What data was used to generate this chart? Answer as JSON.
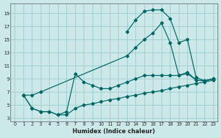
{
  "xlabel": "Humidex (Indice chaleur)",
  "bg_color": "#cce8e8",
  "grid_color": "#99cccc",
  "line_color": "#006666",
  "xlim": [
    -0.5,
    23.5
  ],
  "ylim": [
    2.5,
    20.5
  ],
  "xticks": [
    0,
    1,
    2,
    3,
    4,
    5,
    6,
    7,
    8,
    9,
    10,
    11,
    12,
    13,
    14,
    15,
    16,
    17,
    18,
    19,
    20,
    21,
    22,
    23
  ],
  "yticks": [
    3,
    5,
    7,
    9,
    11,
    13,
    15,
    17,
    19
  ],
  "curves": [
    {
      "x": [
        13,
        14,
        15,
        16,
        17,
        18,
        19,
        20,
        21,
        22,
        23
      ],
      "y": [
        16.2,
        18.0,
        19.3,
        19.5,
        19.5,
        18.2,
        14.5,
        15.0,
        9.2,
        8.7,
        9.0
      ]
    },
    {
      "x": [
        1,
        2,
        3,
        13,
        14,
        15,
        16,
        17,
        18,
        19,
        20,
        21,
        22,
        23
      ],
      "y": [
        6.5,
        6.5,
        7.0,
        12.5,
        13.8,
        15.0,
        16.0,
        17.5,
        14.5,
        9.5,
        10.0,
        8.8,
        8.7,
        9.0
      ]
    },
    {
      "x": [
        1,
        2,
        3,
        4,
        5,
        6,
        7,
        8,
        9,
        10,
        11,
        12,
        13,
        14,
        15,
        16,
        17,
        18,
        19,
        20,
        21,
        22,
        23
      ],
      "y": [
        6.5,
        4.5,
        4.0,
        4.0,
        3.5,
        4.0,
        9.8,
        8.5,
        8.0,
        7.5,
        7.5,
        8.0,
        8.5,
        9.0,
        9.5,
        9.5,
        9.5,
        9.5,
        9.5,
        9.8,
        8.8,
        8.7,
        9.0
      ]
    },
    {
      "x": [
        1,
        2,
        3,
        4,
        5,
        6,
        7,
        8,
        9,
        10,
        11,
        12,
        13,
        14,
        15,
        16,
        17,
        18,
        19,
        20,
        21,
        22,
        23
      ],
      "y": [
        6.5,
        4.5,
        4.0,
        4.0,
        3.5,
        3.5,
        4.5,
        5.0,
        5.2,
        5.5,
        5.8,
        6.0,
        6.3,
        6.5,
        6.8,
        7.0,
        7.2,
        7.5,
        7.8,
        8.0,
        8.3,
        8.5,
        8.8
      ]
    }
  ]
}
